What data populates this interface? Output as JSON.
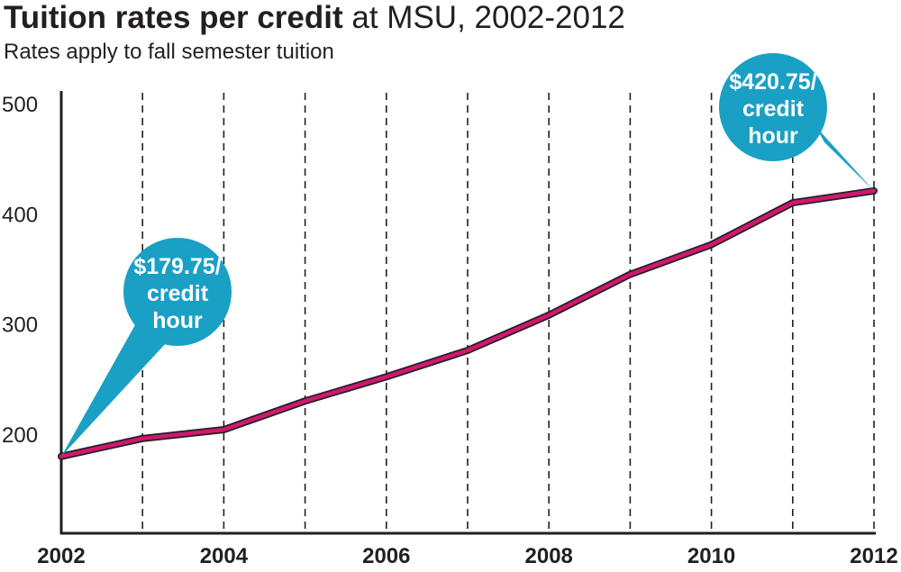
{
  "title_bold": "Tuition rates per credit",
  "title_rest": " at MSU, 2002-2012",
  "subtitle": "Rates apply to fall semester tuition",
  "colors": {
    "line": "#d0186f",
    "callout": "#1aa0c4",
    "axis": "#231f20"
  },
  "chart_data": {
    "type": "line",
    "title": "Tuition rates per credit at MSU, 2002-2012",
    "subtitle": "Rates apply to fall semester tuition",
    "xlabel": "",
    "ylabel": "",
    "x": [
      2002,
      2003,
      2004,
      2005,
      2006,
      2007,
      2008,
      2009,
      2010,
      2011,
      2012
    ],
    "values": [
      179.75,
      196,
      204,
      230,
      252,
      276,
      308,
      345,
      372,
      410,
      420.75
    ],
    "xlim": [
      2002,
      2012
    ],
    "ylim": [
      110,
      500
    ],
    "yticks": [
      200,
      300,
      400,
      500
    ],
    "xtick_labels": [
      "2002",
      "2004",
      "2006",
      "2008",
      "2010",
      "2012"
    ],
    "ytick_labels": [
      "200",
      "300",
      "400",
      "500"
    ],
    "grid": "vertical dashed lines each year",
    "annotations": [
      {
        "year": 2002,
        "lines": [
          "$179.75/",
          "credit",
          "hour"
        ]
      },
      {
        "year": 2012,
        "lines": [
          "$420.75/",
          "credit",
          "hour"
        ]
      }
    ]
  }
}
